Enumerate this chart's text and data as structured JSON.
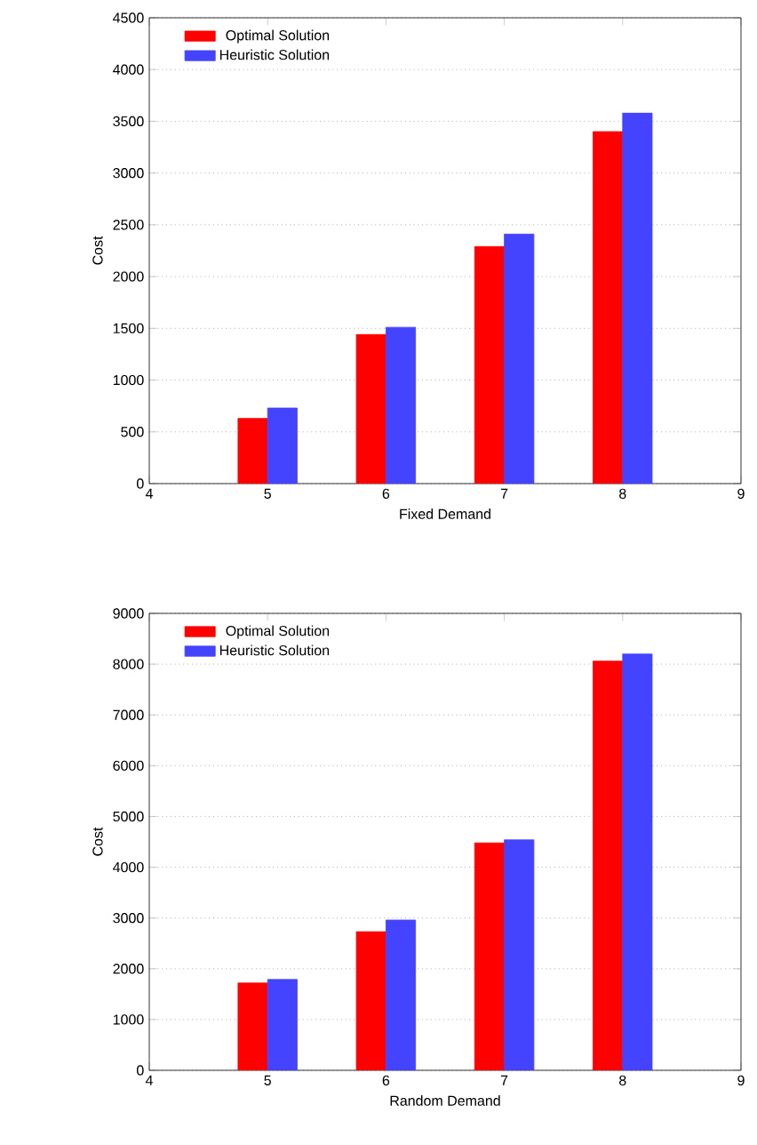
{
  "chart_data": [
    {
      "type": "bar",
      "xlabel": "Fixed Demand",
      "ylabel": "Cost",
      "x": [
        5,
        6,
        7,
        8
      ],
      "xlim": [
        4,
        9
      ],
      "xticks": [
        4,
        5,
        6,
        7,
        8,
        9
      ],
      "ylim": [
        0,
        4500
      ],
      "yticks": [
        0,
        500,
        1000,
        1500,
        2000,
        2500,
        3000,
        3500,
        4000,
        4500
      ],
      "grid": "y",
      "legend": "top left",
      "series": [
        {
          "name": "Optimal Solution",
          "color": "#ff0000",
          "values": [
            630,
            1440,
            2290,
            3400
          ]
        },
        {
          "name": "Heuristic Solution",
          "color": "#4444ff",
          "values": [
            730,
            1510,
            2410,
            3580
          ]
        }
      ]
    },
    {
      "type": "bar",
      "xlabel": "Random Demand",
      "ylabel": "Cost",
      "x": [
        5,
        6,
        7,
        8
      ],
      "xlim": [
        4,
        9
      ],
      "xticks": [
        4,
        5,
        6,
        7,
        8,
        9
      ],
      "ylim": [
        0,
        9000
      ],
      "yticks": [
        0,
        1000,
        2000,
        3000,
        4000,
        5000,
        6000,
        7000,
        8000,
        9000
      ],
      "grid": "y",
      "legend": "top left",
      "series": [
        {
          "name": "Optimal Solution",
          "color": "#ff0000",
          "values": [
            1720,
            2730,
            4480,
            8060
          ]
        },
        {
          "name": "Heuristic Solution",
          "color": "#4444ff",
          "values": [
            1790,
            2960,
            4540,
            8200
          ]
        }
      ]
    }
  ]
}
